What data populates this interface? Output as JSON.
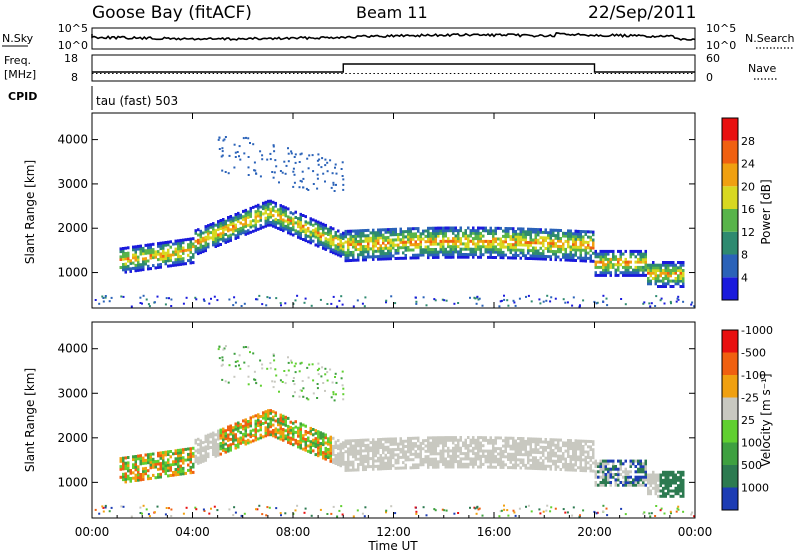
{
  "header": {
    "station": "Goose Bay (fitACF)",
    "beam": "Beam 11",
    "date": "22/Sep/2011"
  },
  "top_panels": {
    "nsky_label": "N.Sky",
    "nsky_ticks": [
      "10^5",
      "10^0"
    ],
    "nsearch_label": "N.Search",
    "nsearch_ticks": [
      "10^5",
      "10^0"
    ],
    "freq_label_line1": "Freq.",
    "freq_label_line2": "[MHz]",
    "freq_ticks": [
      "18",
      "8"
    ],
    "nave_label": "Nave",
    "nave_ticks": [
      "60",
      "0"
    ],
    "cpid_label": "CPID",
    "cpid_text": "tau (fast) 503"
  },
  "chart_data": [
    {
      "type": "heatmap",
      "name": "power-panel",
      "ylabel": "Slant Range [km]",
      "ylim": [
        200,
        4600
      ],
      "yticks": [
        "1000",
        "2000",
        "3000",
        "4000"
      ],
      "x_hours": [
        0,
        24
      ],
      "colorbar_label": "Power [dB]",
      "colorbar_ticks": [
        "4",
        "8",
        "12",
        "16",
        "20",
        "24",
        "28"
      ],
      "colorbar_colors": [
        "#1a1adc",
        "#2a62b8",
        "#2e8a70",
        "#58b44a",
        "#d8d820",
        "#f0a010",
        "#f06010",
        "#e81010"
      ]
    },
    {
      "type": "heatmap",
      "name": "velocity-panel",
      "ylabel": "Slant Range [km]",
      "ylim": [
        200,
        4600
      ],
      "yticks": [
        "1000",
        "2000",
        "3000",
        "4000"
      ],
      "x_hours": [
        0,
        24
      ],
      "colorbar_label": "Velocity [m s⁻¹]",
      "colorbar_ticks": [
        "1000",
        "500",
        "100",
        "25",
        "-25",
        "-100",
        "-500",
        "-1000"
      ],
      "colorbar_colors": [
        "#1c3cb4",
        "#2c7a50",
        "#3ea040",
        "#60d030",
        "#c8c8c0",
        "#f0a010",
        "#f06010",
        "#e81010"
      ]
    }
  ],
  "x_axis": {
    "ticks": [
      "00:00",
      "04:00",
      "08:00",
      "12:00",
      "16:00",
      "20:00",
      "00:00"
    ],
    "label": "Time UT"
  }
}
